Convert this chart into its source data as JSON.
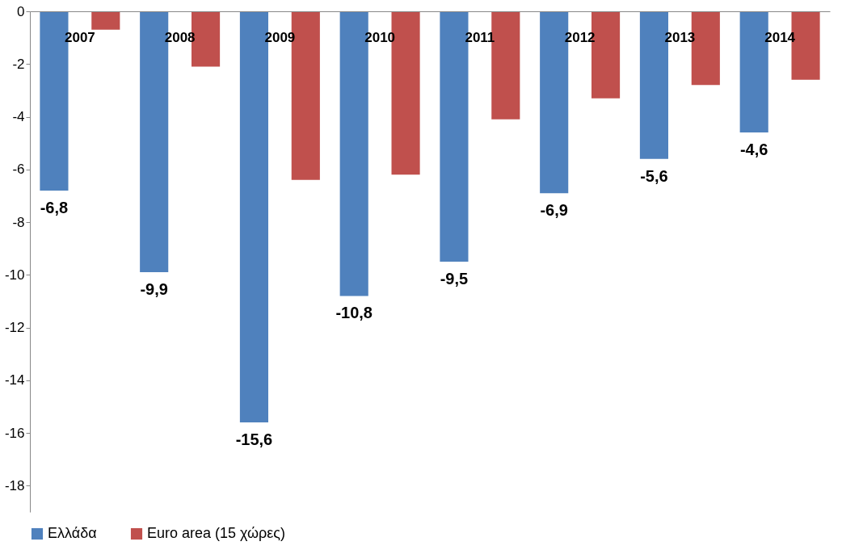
{
  "chart_data": {
    "type": "bar",
    "categories": [
      "2007",
      "2008",
      "2009",
      "2010",
      "2011",
      "2012",
      "2013",
      "2014"
    ],
    "series": [
      {
        "name": "Ελλάδα",
        "color": "#4f81bd",
        "values": [
          -6.8,
          -9.9,
          -15.6,
          -10.8,
          -9.5,
          -6.9,
          -5.6,
          -4.6
        ],
        "value_labels": [
          "-6,8",
          "-9,9",
          "-15,6",
          "-10,8",
          "-9,5",
          "-6,9",
          "-5,6",
          "-4,6"
        ]
      },
      {
        "name": "Euro area (15 χώρες)",
        "color": "#c0504d",
        "values": [
          -0.7,
          -2.1,
          -6.4,
          -6.2,
          -4.1,
          -3.3,
          -2.8,
          -2.6
        ]
      }
    ],
    "ylim": [
      -19,
      0
    ],
    "yticks": [
      0,
      -2,
      -4,
      -6,
      -8,
      -10,
      -12,
      -14,
      -16,
      -18
    ],
    "grid": false,
    "legend": "bottom"
  }
}
